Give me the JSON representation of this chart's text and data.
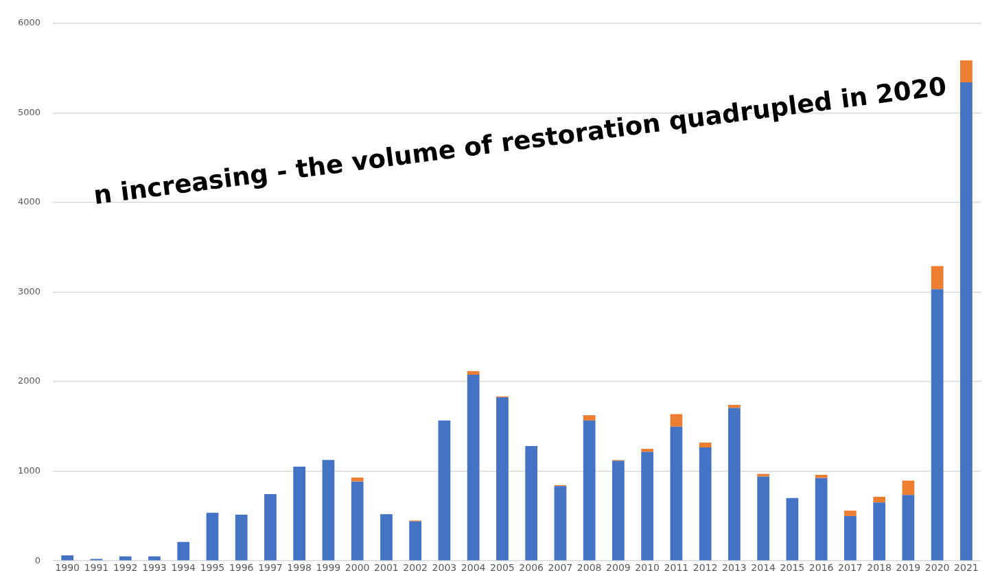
{
  "chart_data": {
    "type": "bar",
    "stacked": true,
    "annotations": [
      "n increasing - the volume of restoration quadrupled in 2020"
    ],
    "categories": [
      "1990",
      "1991",
      "1992",
      "1993",
      "1994",
      "1995",
      "1996",
      "1997",
      "1998",
      "1999",
      "2000",
      "2001",
      "2002",
      "2003",
      "2004",
      "2005",
      "2006",
      "2007",
      "2008",
      "2009",
      "2010",
      "2011",
      "2012",
      "2013",
      "2014",
      "2015",
      "2016",
      "2017",
      "2018",
      "2019",
      "2020",
      "2021"
    ],
    "series": [
      {
        "color": "#4472c4",
        "values": [
          60,
          20,
          50,
          50,
          210,
          535,
          515,
          745,
          1050,
          1125,
          885,
          520,
          440,
          1565,
          2077,
          1825,
          1280,
          835,
          1565,
          1115,
          1215,
          1497,
          1265,
          1705,
          940,
          700,
          925,
          500,
          650,
          735,
          3030,
          5340
        ]
      },
      {
        "color": "#ed7d31",
        "values": [
          0,
          0,
          0,
          0,
          0,
          0,
          0,
          0,
          0,
          0,
          45,
          0,
          10,
          0,
          40,
          10,
          0,
          10,
          60,
          10,
          35,
          140,
          55,
          35,
          30,
          0,
          35,
          60,
          65,
          160,
          260,
          245
        ]
      }
    ],
    "ylim": [
      0,
      6000
    ],
    "yticks": [
      0,
      1000,
      2000,
      3000,
      4000,
      5000,
      6000
    ],
    "grid": "y"
  }
}
